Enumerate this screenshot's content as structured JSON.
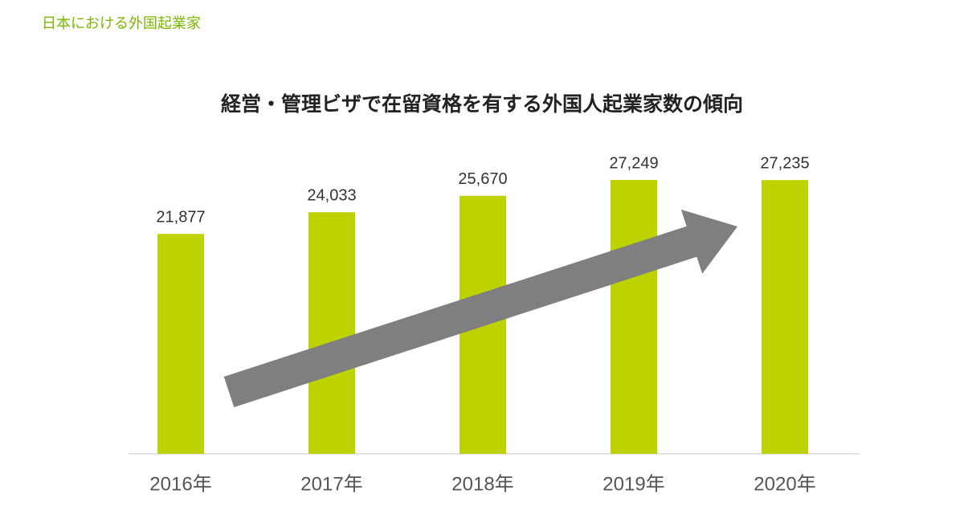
{
  "header": {
    "title": "日本における外国起業家"
  },
  "chart_data": {
    "type": "bar",
    "title": "経営・管理ビザで在留資格を有する外国人起業家数の傾向",
    "categories": [
      "2016年",
      "2017年",
      "2018年",
      "2019年",
      "2020年"
    ],
    "values": [
      21877,
      24033,
      25670,
      27249,
      27235
    ],
    "value_labels": [
      "21,877",
      "24,033",
      "25,670",
      "27,249",
      "27,235"
    ],
    "color": "#bed200"
  }
}
